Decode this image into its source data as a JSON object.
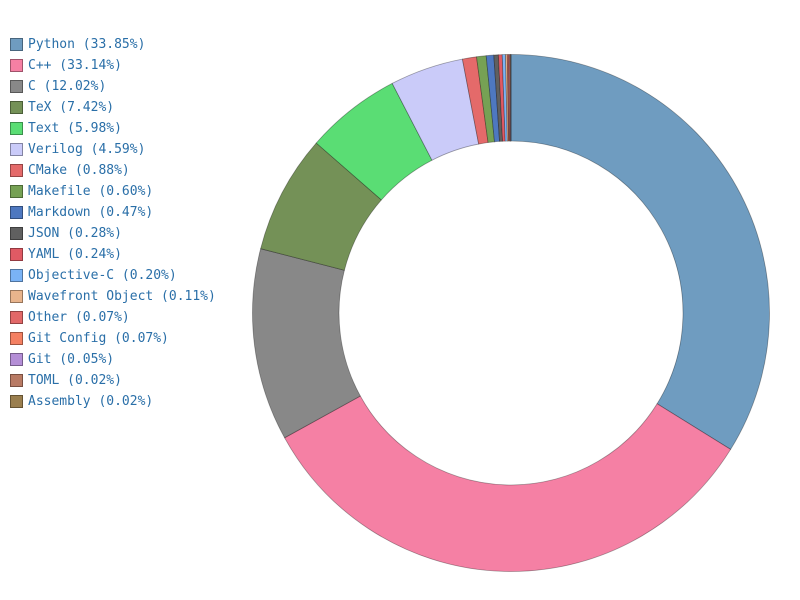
{
  "chart_data": {
    "type": "pie",
    "variant": "donut",
    "title": "",
    "legend_position": "left",
    "slices": [
      {
        "label": "Python",
        "value": 33.85,
        "legend_text": "Python (33.85%)",
        "color": "#6f9cc0"
      },
      {
        "label": "C++",
        "value": 33.14,
        "legend_text": "C++ (33.14%)",
        "color": "#f580a4"
      },
      {
        "label": "C",
        "value": 12.02,
        "legend_text": "C (12.02%)",
        "color": "#888888"
      },
      {
        "label": "TeX",
        "value": 7.42,
        "legend_text": "TeX (7.42%)",
        "color": "#749157"
      },
      {
        "label": "Text",
        "value": 5.98,
        "legend_text": "Text (5.98%)",
        "color": "#5add74"
      },
      {
        "label": "Verilog",
        "value": 4.59,
        "legend_text": "Verilog (4.59%)",
        "color": "#cacbf9"
      },
      {
        "label": "CMake",
        "value": 0.88,
        "legend_text": "CMake (0.88%)",
        "color": "#e46a6a"
      },
      {
        "label": "Makefile",
        "value": 0.6,
        "legend_text": "Makefile (0.60%)",
        "color": "#76a154"
      },
      {
        "label": "Markdown",
        "value": 0.47,
        "legend_text": "Markdown (0.47%)",
        "color": "#4e78c0"
      },
      {
        "label": "JSON",
        "value": 0.28,
        "legend_text": "JSON (0.28%)",
        "color": "#606060"
      },
      {
        "label": "YAML",
        "value": 0.24,
        "legend_text": "YAML (0.24%)",
        "color": "#e05a64"
      },
      {
        "label": "Objective-C",
        "value": 0.2,
        "legend_text": "Objective-C (0.20%)",
        "color": "#7ab3f5"
      },
      {
        "label": "Wavefront Object",
        "value": 0.11,
        "legend_text": "Wavefront Object (0.11%)",
        "color": "#e8b48c"
      },
      {
        "label": "Other",
        "value": 0.07,
        "legend_text": "Other (0.07%)",
        "color": "#e26868"
      },
      {
        "label": "Git Config",
        "value": 0.07,
        "legend_text": "Git Config (0.07%)",
        "color": "#f48062"
      },
      {
        "label": "Git",
        "value": 0.05,
        "legend_text": "Git (0.05%)",
        "color": "#b48ed6"
      },
      {
        "label": "TOML",
        "value": 0.02,
        "legend_text": "TOML (0.02%)",
        "color": "#b87a64"
      },
      {
        "label": "Assembly",
        "value": 0.02,
        "legend_text": "Assembly (0.02%)",
        "color": "#9a7e4e"
      }
    ]
  }
}
